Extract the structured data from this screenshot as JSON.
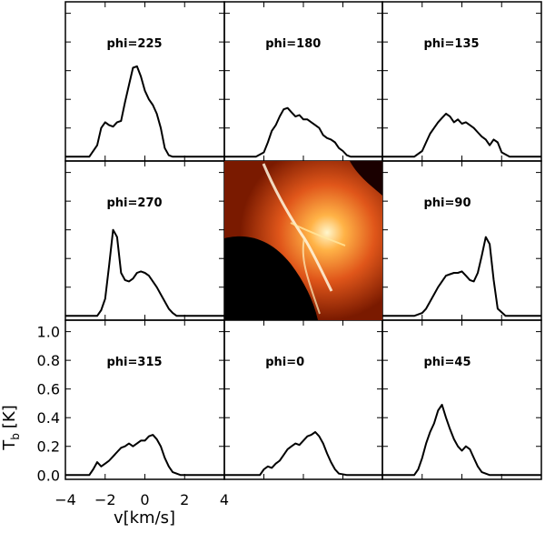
{
  "chart_data": {
    "type": "line",
    "layout": "3x3 grid of spectra with a central map image",
    "xlabel": "v[km/s]",
    "ylabel": "T",
    "ylabel_sub": "b",
    "ylabel_unit": "[K]",
    "xlim": [
      -4,
      4
    ],
    "ylim": [
      -0.03,
      1.08
    ],
    "x_ticks": [
      -4,
      -2,
      0,
      2,
      4
    ],
    "y_ticks": [
      0.0,
      0.2,
      0.4,
      0.6,
      0.8,
      1.0
    ],
    "x_tick_labels": [
      "−4",
      "−2",
      "0",
      "2",
      "4"
    ],
    "y_tick_labels": [
      "0.0",
      "0.2",
      "0.4",
      "0.6",
      "0.8",
      "1.0"
    ],
    "grid": false,
    "center_image": "temperature map (black to red/orange/white colormap)",
    "panels": [
      {
        "label": "phi=225",
        "row": 0,
        "col": 0,
        "x": [
          -4.0,
          -2.8,
          -2.4,
          -2.2,
          -2.0,
          -1.8,
          -1.6,
          -1.4,
          -1.2,
          -1.0,
          -0.8,
          -0.6,
          -0.4,
          -0.2,
          0.0,
          0.2,
          0.4,
          0.6,
          0.8,
          1.0,
          1.2,
          1.4,
          1.6,
          2.0,
          4.0
        ],
        "y": [
          0.0,
          0.0,
          0.08,
          0.2,
          0.24,
          0.22,
          0.21,
          0.24,
          0.25,
          0.38,
          0.5,
          0.62,
          0.63,
          0.56,
          0.46,
          0.4,
          0.36,
          0.3,
          0.2,
          0.06,
          0.01,
          0.0,
          0.0,
          0.0,
          0.0
        ]
      },
      {
        "label": "phi=180",
        "row": 0,
        "col": 1,
        "x": [
          -4.0,
          -2.4,
          -2.0,
          -1.8,
          -1.6,
          -1.4,
          -1.2,
          -1.0,
          -0.8,
          -0.6,
          -0.4,
          -0.2,
          0.0,
          0.2,
          0.4,
          0.6,
          0.8,
          1.0,
          1.2,
          1.4,
          1.6,
          1.8,
          2.0,
          2.2,
          2.4,
          4.0
        ],
        "y": [
          0.0,
          0.0,
          0.03,
          0.1,
          0.18,
          0.22,
          0.28,
          0.33,
          0.34,
          0.31,
          0.28,
          0.29,
          0.26,
          0.26,
          0.24,
          0.22,
          0.2,
          0.15,
          0.13,
          0.12,
          0.1,
          0.06,
          0.04,
          0.01,
          0.0,
          0.0
        ]
      },
      {
        "label": "phi=135",
        "row": 0,
        "col": 2,
        "x": [
          -4.0,
          -2.4,
          -2.0,
          -1.8,
          -1.6,
          -1.4,
          -1.2,
          -1.0,
          -0.8,
          -0.6,
          -0.4,
          -0.2,
          0.0,
          0.2,
          0.4,
          0.6,
          0.8,
          1.0,
          1.2,
          1.4,
          1.6,
          1.8,
          2.0,
          2.4,
          4.0
        ],
        "y": [
          0.0,
          0.0,
          0.04,
          0.1,
          0.16,
          0.2,
          0.24,
          0.27,
          0.3,
          0.28,
          0.24,
          0.26,
          0.23,
          0.24,
          0.22,
          0.2,
          0.17,
          0.14,
          0.12,
          0.08,
          0.12,
          0.1,
          0.03,
          0.0,
          0.0
        ]
      },
      {
        "label": "phi=270",
        "row": 1,
        "col": 0,
        "x": [
          -4.0,
          -2.4,
          -2.2,
          -2.0,
          -1.8,
          -1.6,
          -1.4,
          -1.2,
          -1.0,
          -0.8,
          -0.6,
          -0.4,
          -0.2,
          0.0,
          0.2,
          0.4,
          0.6,
          0.8,
          1.0,
          1.2,
          1.4,
          1.6,
          2.0,
          4.0
        ],
        "y": [
          0.0,
          0.0,
          0.04,
          0.12,
          0.35,
          0.6,
          0.55,
          0.3,
          0.25,
          0.24,
          0.26,
          0.3,
          0.31,
          0.3,
          0.28,
          0.24,
          0.2,
          0.15,
          0.1,
          0.05,
          0.02,
          0.0,
          0.0,
          0.0
        ]
      },
      {
        "label": "phi=90",
        "row": 1,
        "col": 2,
        "x": [
          -4.0,
          -2.4,
          -2.0,
          -1.8,
          -1.6,
          -1.4,
          -1.2,
          -1.0,
          -0.8,
          -0.6,
          -0.4,
          -0.2,
          0.0,
          0.2,
          0.4,
          0.6,
          0.8,
          1.0,
          1.2,
          1.4,
          1.6,
          1.8,
          2.2,
          4.0
        ],
        "y": [
          0.0,
          0.0,
          0.02,
          0.05,
          0.1,
          0.15,
          0.2,
          0.24,
          0.28,
          0.29,
          0.3,
          0.3,
          0.31,
          0.28,
          0.25,
          0.24,
          0.3,
          0.42,
          0.55,
          0.5,
          0.25,
          0.05,
          0.0,
          0.0
        ]
      },
      {
        "label": "phi=315",
        "row": 2,
        "col": 0,
        "x": [
          -4.0,
          -2.8,
          -2.6,
          -2.4,
          -2.2,
          -2.0,
          -1.8,
          -1.6,
          -1.4,
          -1.2,
          -1.0,
          -0.8,
          -0.6,
          -0.4,
          -0.2,
          0.0,
          0.2,
          0.4,
          0.6,
          0.8,
          1.0,
          1.2,
          1.4,
          1.8,
          4.0
        ],
        "y": [
          0.0,
          0.0,
          0.04,
          0.09,
          0.06,
          0.08,
          0.1,
          0.13,
          0.16,
          0.19,
          0.2,
          0.22,
          0.2,
          0.22,
          0.24,
          0.24,
          0.27,
          0.28,
          0.25,
          0.2,
          0.12,
          0.06,
          0.02,
          0.0,
          0.0
        ]
      },
      {
        "label": "phi=0",
        "row": 2,
        "col": 1,
        "x": [
          -4.0,
          -2.2,
          -2.0,
          -1.8,
          -1.6,
          -1.4,
          -1.2,
          -1.0,
          -0.8,
          -0.6,
          -0.4,
          -0.2,
          0.0,
          0.2,
          0.4,
          0.6,
          0.8,
          1.0,
          1.2,
          1.4,
          1.6,
          1.8,
          2.2,
          4.0
        ],
        "y": [
          0.0,
          0.0,
          0.04,
          0.06,
          0.05,
          0.08,
          0.1,
          0.14,
          0.18,
          0.2,
          0.22,
          0.21,
          0.24,
          0.27,
          0.28,
          0.3,
          0.27,
          0.22,
          0.15,
          0.09,
          0.04,
          0.01,
          0.0,
          0.0
        ]
      },
      {
        "label": "phi=45",
        "row": 2,
        "col": 2,
        "x": [
          -4.0,
          -2.4,
          -2.2,
          -2.0,
          -1.8,
          -1.6,
          -1.4,
          -1.2,
          -1.0,
          -0.8,
          -0.6,
          -0.4,
          -0.2,
          0.0,
          0.2,
          0.4,
          0.6,
          0.8,
          1.0,
          1.2,
          1.4,
          2.0,
          4.0
        ],
        "y": [
          0.0,
          0.0,
          0.04,
          0.12,
          0.22,
          0.3,
          0.36,
          0.45,
          0.49,
          0.4,
          0.32,
          0.25,
          0.2,
          0.17,
          0.2,
          0.18,
          0.12,
          0.06,
          0.02,
          0.01,
          0.0,
          0.0,
          0.0
        ]
      }
    ]
  }
}
